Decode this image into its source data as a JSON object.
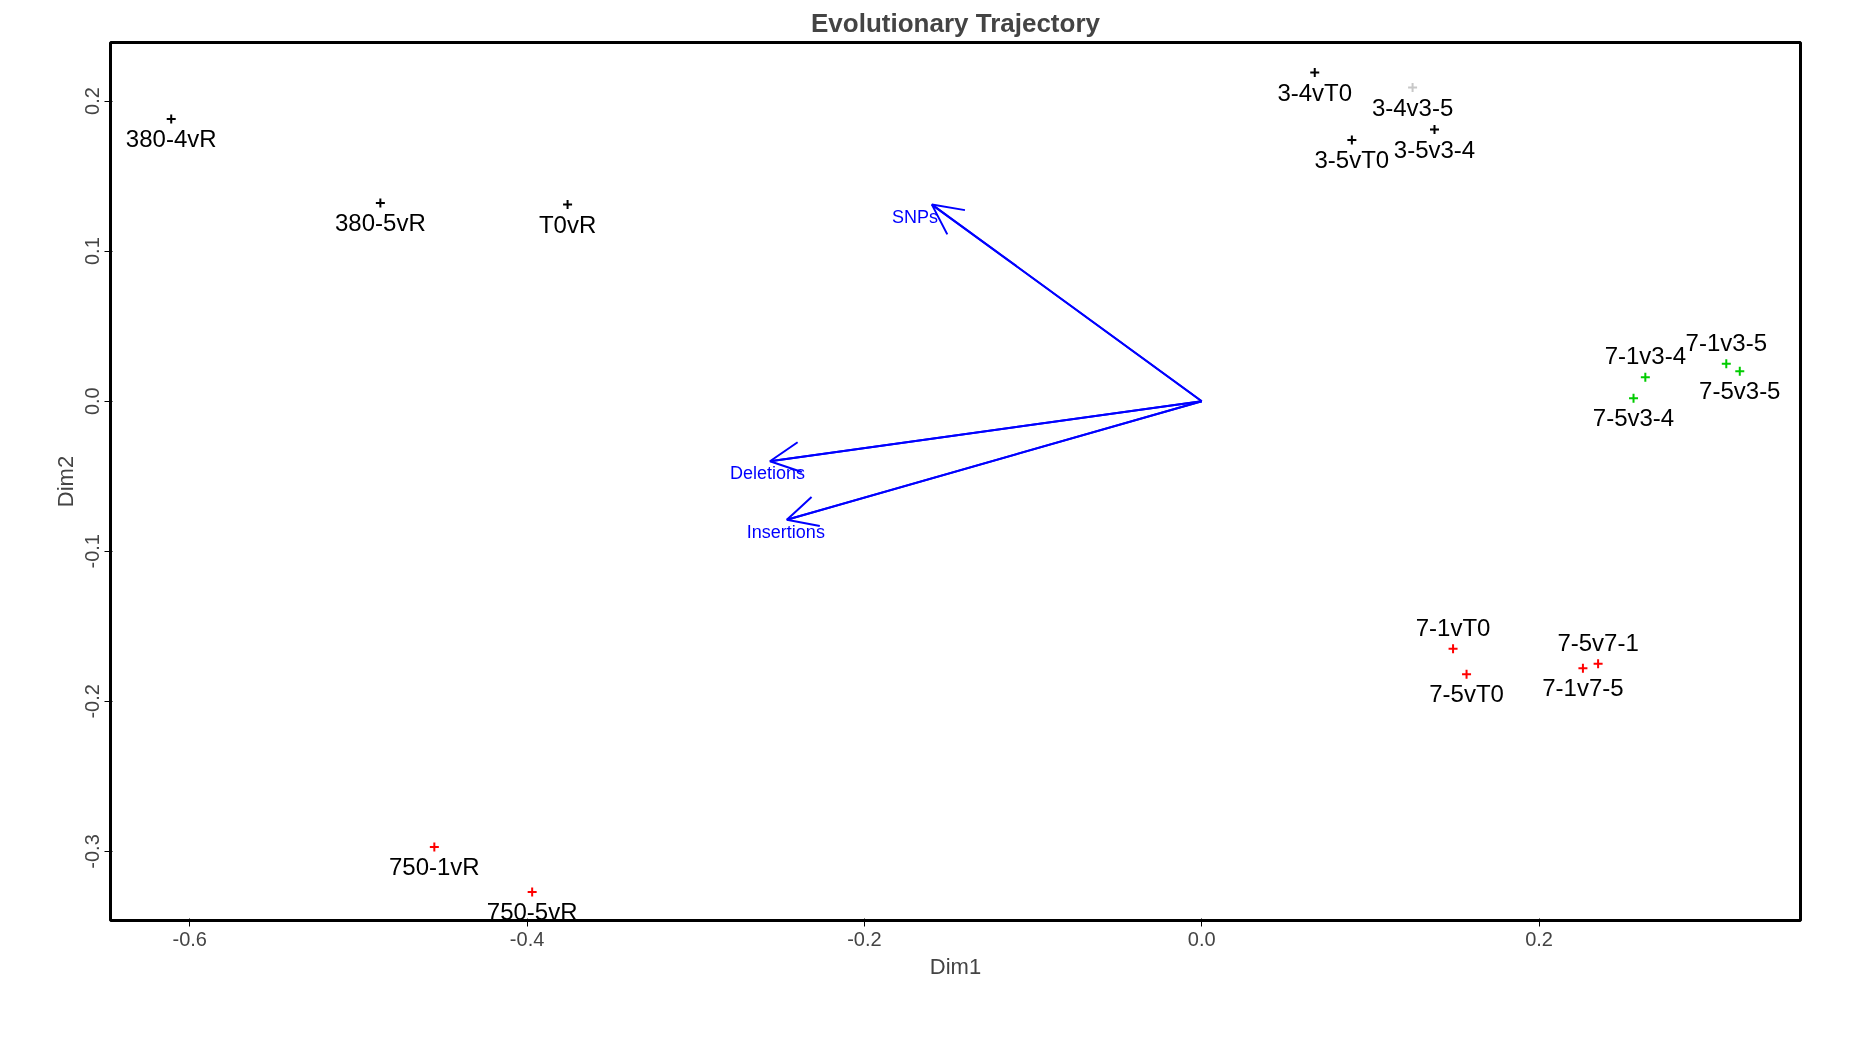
{
  "chart_data": {
    "type": "scatter",
    "title": "Evolutionary Trajectory",
    "xlabel": "Dim1",
    "ylabel": "Dim2",
    "xlim": [
      -0.647,
      0.355
    ],
    "ylim": [
      -0.346,
      0.239
    ],
    "xticks": [
      -0.6,
      -0.4,
      -0.2,
      {
        "value": 0,
        "label": "0.0"
      },
      0.2
    ],
    "yticks": [
      -0.3,
      -0.2,
      -0.1,
      {
        "value": 0,
        "label": "0.0"
      },
      0.1,
      0.2
    ],
    "grid": false,
    "marker": "cross",
    "series": [
      {
        "color": "#000000",
        "x": [
          -0.611,
          -0.487,
          -0.376,
          0.067,
          0.089,
          0.138
        ],
        "values": [
          0.188,
          0.132,
          0.131,
          0.219,
          0.174,
          0.181
        ],
        "value_labels": [
          "380-4vR",
          "380-5vR",
          "T0vR",
          "3-4vT0",
          "3-5vT0",
          "3-5v3-4"
        ]
      },
      {
        "color": "#c8c8c8",
        "x": [
          0.125
        ],
        "values": [
          0.209
        ],
        "value_labels": [
          "3-4v3-5"
        ]
      },
      {
        "color": "#00cc00",
        "x": [
          0.263,
          0.256,
          0.311,
          0.319
        ],
        "values": [
          0.016,
          0.002,
          0.025,
          0.02
        ],
        "value_labels": [
          "7-1v3-4",
          "7-5v3-4",
          "7-1v3-5",
          "7-5v3-5"
        ]
      },
      {
        "color": "#ff0000",
        "x": [
          0.149,
          0.157,
          0.235,
          0.226,
          -0.455,
          -0.397
        ],
        "values": [
          -0.165,
          -0.182,
          -0.175,
          -0.178,
          -0.297,
          -0.327
        ],
        "value_labels": [
          "7-1vT0",
          "7-5vT0",
          "7-5v7-1",
          "7-1v7-5",
          "750-1vR",
          "750-5vR"
        ]
      },
      {
        "type": "line",
        "marker": "none",
        "name": "SNPs",
        "color": "#0000ff",
        "x": [
          0,
          -0.16
        ],
        "values": [
          0,
          0.131
        ]
      },
      {
        "type": "line",
        "marker": "none",
        "name": "Deletions",
        "color": "#0000ff",
        "x": [
          0,
          -0.256
        ],
        "values": [
          0,
          -0.04
        ]
      },
      {
        "type": "line",
        "marker": "none",
        "name": "Insertions",
        "color": "#0000ff",
        "x": [
          0,
          -0.246
        ],
        "values": [
          0,
          -0.079
        ]
      }
    ]
  }
}
